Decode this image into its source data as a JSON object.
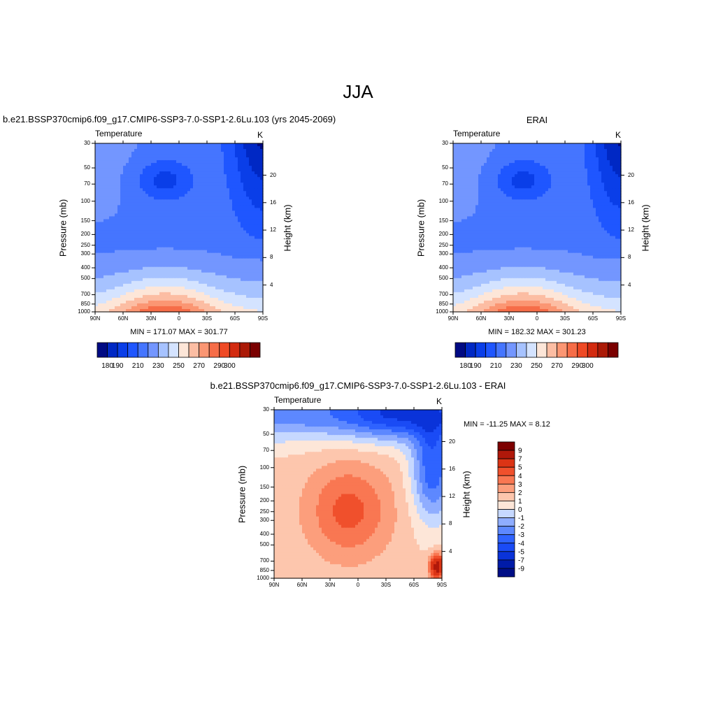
{
  "main_title": "JJA",
  "panels": [
    {
      "title": "b.e21.BSSP370cmip6.f09_g17.CMIP6-SSP3-7.0-SSP1-2.6Lu.103 (yrs 2045-2069)",
      "variable": "Temperature",
      "units": "K",
      "minmax": "MIN = 171.07  MAX = 301.77"
    },
    {
      "title": "ERAI",
      "variable": "Temperature",
      "units": "K",
      "minmax": "MIN = 182.32  MAX = 301.23"
    },
    {
      "title": "b.e21.BSSP370cmip6.f09_g17.CMIP6-SSP3-7.0-SSP1-2.6Lu.103 - ERAI",
      "variable": "Temperature",
      "units": "K",
      "minmax": "MIN = -11.25  MAX =   8.12"
    }
  ],
  "chart_data": [
    {
      "type": "heatmap",
      "title": "b.e21.BSSP370cmip6.f09_g17.CMIP6-SSP3-7.0-SSP1-2.6Lu.103 (yrs 2045-2069)",
      "subtitle": "Temperature",
      "units": "K",
      "xlabel": "",
      "ylabel": "Pressure (mb)",
      "y2label": "Height (km)",
      "x_ticks": [
        "90N",
        "60N",
        "30N",
        "0",
        "30S",
        "60S",
        "90S"
      ],
      "y_ticks": [
        30,
        50,
        70,
        100,
        150,
        200,
        250,
        300,
        400,
        500,
        700,
        850,
        1000
      ],
      "y2_ticks": [
        4,
        8,
        12,
        16,
        20
      ],
      "ylim": [
        1000,
        30
      ],
      "y_scale": "log",
      "min": 171.07,
      "max": 301.77,
      "levels": [
        180,
        190,
        200,
        210,
        220,
        230,
        240,
        250,
        260,
        270,
        280,
        290,
        300
      ],
      "colorbar_labels": [
        "180",
        "190",
        "210",
        "230",
        "250",
        "270",
        "290",
        "300"
      ]
    },
    {
      "type": "heatmap",
      "title": "ERAI",
      "subtitle": "Temperature",
      "units": "K",
      "xlabel": "",
      "ylabel": "Pressure (mb)",
      "y2label": "Height (km)",
      "x_ticks": [
        "90N",
        "60N",
        "30N",
        "0",
        "30S",
        "60S",
        "90S"
      ],
      "y_ticks": [
        30,
        50,
        70,
        100,
        150,
        200,
        250,
        300,
        400,
        500,
        700,
        850,
        1000
      ],
      "y2_ticks": [
        4,
        8,
        12,
        16,
        20
      ],
      "ylim": [
        1000,
        30
      ],
      "y_scale": "log",
      "min": 182.32,
      "max": 301.23,
      "levels": [
        180,
        190,
        200,
        210,
        220,
        230,
        240,
        250,
        260,
        270,
        280,
        290,
        300
      ],
      "colorbar_labels": [
        "180",
        "190",
        "210",
        "230",
        "250",
        "270",
        "290",
        "300"
      ]
    },
    {
      "type": "heatmap",
      "title": "b.e21.BSSP370cmip6.f09_g17.CMIP6-SSP3-7.0-SSP1-2.6Lu.103 - ERAI",
      "subtitle": "Temperature",
      "units": "K",
      "xlabel": "",
      "ylabel": "Pressure (mb)",
      "y2label": "Height (km)",
      "x_ticks": [
        "90N",
        "60N",
        "30N",
        "0",
        "30S",
        "60S",
        "90S"
      ],
      "y_ticks": [
        30,
        50,
        70,
        100,
        150,
        200,
        250,
        300,
        400,
        500,
        700,
        850,
        1000
      ],
      "y2_ticks": [
        4,
        8,
        12,
        16,
        20
      ],
      "ylim": [
        1000,
        30
      ],
      "y_scale": "log",
      "min": -11.25,
      "max": 8.12,
      "levels": [
        -9,
        -7,
        -5,
        -4,
        -3,
        -2,
        -1,
        0,
        1,
        2,
        3,
        4,
        5,
        7,
        9
      ],
      "colorbar_labels": [
        "9",
        "7",
        "5",
        "4",
        "3",
        "2",
        "1",
        "0",
        "-1",
        "-2",
        "-3",
        "-4",
        "-5",
        "-7",
        "-9"
      ]
    }
  ],
  "colors": {
    "seq13": [
      "#000a83",
      "#0028c4",
      "#0a3ee8",
      "#1f56ff",
      "#3f72ff",
      "#6590ff",
      "#90b0ff",
      "#c3d6ff",
      "#fddccc",
      "#fcbba0",
      "#fc9573",
      "#fa7350",
      "#f5522e",
      "#dc3116",
      "#b51c0a",
      "#7d0000"
    ],
    "temp": [
      "#000a83",
      "#0028c4",
      "#0a3ee8",
      "#1f56ff",
      "#4575ff",
      "#7396ff",
      "#a6c2ff",
      "#d4e3ff",
      "#fde6d8",
      "#fcbda3",
      "#fb9673",
      "#f66d48",
      "#ef4a25",
      "#d32b10",
      "#ab1a07",
      "#7a0000"
    ],
    "diff": [
      "#000e86",
      "#001ba8",
      "#0a33d9",
      "#1a4bf5",
      "#2f63ff",
      "#5d88ff",
      "#8fadff",
      "#c6d8ff",
      "#fde6d8",
      "#fdc6ad",
      "#fc9e7c",
      "#f97752",
      "#f0502c",
      "#db3415",
      "#b0180a",
      "#7d0000"
    ]
  }
}
